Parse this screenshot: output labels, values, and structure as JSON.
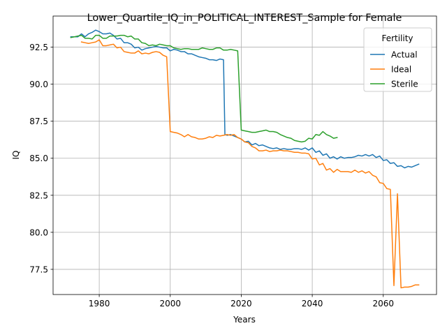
{
  "chart_data": {
    "type": "line",
    "title": "Lower_Quartile_IQ_in_POLITICAL_INTEREST_Sample for Female",
    "xlabel": "Years",
    "ylabel": "IQ",
    "xlim": [
      1967,
      2075
    ],
    "ylim": [
      75.8,
      94.6
    ],
    "xticks": [
      1980,
      2000,
      2020,
      2040,
      2060
    ],
    "yticks": [
      77.5,
      80.0,
      82.5,
      85.0,
      87.5,
      90.0,
      92.5
    ],
    "grid": true,
    "legend": {
      "title": "Fertility",
      "placement": "top-right"
    },
    "series": [
      {
        "name": "Actual",
        "color": "#1f77b4",
        "points": [
          [
            1972,
            93.2
          ],
          [
            1973,
            93.2
          ],
          [
            1974,
            93.2
          ],
          [
            1975,
            93.4
          ],
          [
            1976,
            93.2
          ],
          [
            1977,
            93.4
          ],
          [
            1978,
            93.5
          ],
          [
            1979,
            93.65
          ],
          [
            1980,
            93.55
          ],
          [
            1981,
            93.4
          ],
          [
            1982,
            93.4
          ],
          [
            1983,
            93.45
          ],
          [
            1984,
            93.3
          ],
          [
            1985,
            93.05
          ],
          [
            1986,
            93.1
          ],
          [
            1987,
            92.8
          ],
          [
            1988,
            92.8
          ],
          [
            1989,
            92.7
          ],
          [
            1990,
            92.45
          ],
          [
            1991,
            92.5
          ],
          [
            1992,
            92.3
          ],
          [
            1993,
            92.4
          ],
          [
            1994,
            92.45
          ],
          [
            1995,
            92.5
          ],
          [
            1996,
            92.55
          ],
          [
            1997,
            92.5
          ],
          [
            1998,
            92.45
          ],
          [
            1999,
            92.45
          ],
          [
            2000,
            92.25
          ],
          [
            2001,
            92.35
          ],
          [
            2002,
            92.3
          ],
          [
            2003,
            92.2
          ],
          [
            2004,
            92.2
          ],
          [
            2005,
            92.05
          ],
          [
            2006,
            92.05
          ],
          [
            2007,
            91.95
          ],
          [
            2008,
            91.85
          ],
          [
            2009,
            91.8
          ],
          [
            2010,
            91.75
          ],
          [
            2011,
            91.65
          ],
          [
            2012,
            91.65
          ],
          [
            2013,
            91.6
          ],
          [
            2014,
            91.7
          ],
          [
            2015,
            91.65
          ],
          [
            2015.4,
            86.6
          ],
          [
            2016,
            86.55
          ],
          [
            2017,
            86.6
          ],
          [
            2018,
            86.5
          ],
          [
            2019,
            86.4
          ],
          [
            2020,
            86.3
          ],
          [
            2021,
            86.1
          ],
          [
            2022,
            86.15
          ],
          [
            2023,
            85.9
          ],
          [
            2024,
            86.0
          ],
          [
            2025,
            85.85
          ],
          [
            2026,
            85.9
          ],
          [
            2027,
            85.8
          ],
          [
            2028,
            85.7
          ],
          [
            2029,
            85.65
          ],
          [
            2030,
            85.7
          ],
          [
            2031,
            85.6
          ],
          [
            2032,
            85.65
          ],
          [
            2033,
            85.6
          ],
          [
            2034,
            85.6
          ],
          [
            2035,
            85.65
          ],
          [
            2036,
            85.65
          ],
          [
            2037,
            85.6
          ],
          [
            2038,
            85.7
          ],
          [
            2039,
            85.55
          ],
          [
            2040,
            85.7
          ],
          [
            2041,
            85.4
          ],
          [
            2042,
            85.5
          ],
          [
            2043,
            85.2
          ],
          [
            2044,
            85.3
          ],
          [
            2045,
            85.0
          ],
          [
            2046,
            85.1
          ],
          [
            2047,
            84.95
          ],
          [
            2048,
            85.1
          ],
          [
            2049,
            85.0
          ],
          [
            2050,
            85.05
          ],
          [
            2051,
            85.05
          ],
          [
            2052,
            85.1
          ],
          [
            2053,
            85.2
          ],
          [
            2054,
            85.15
          ],
          [
            2055,
            85.25
          ],
          [
            2056,
            85.15
          ],
          [
            2057,
            85.25
          ],
          [
            2058,
            85.05
          ],
          [
            2059,
            85.15
          ],
          [
            2060,
            84.85
          ],
          [
            2061,
            84.9
          ],
          [
            2062,
            84.65
          ],
          [
            2063,
            84.7
          ],
          [
            2064,
            84.45
          ],
          [
            2065,
            84.5
          ],
          [
            2066,
            84.35
          ],
          [
            2067,
            84.45
          ],
          [
            2068,
            84.4
          ],
          [
            2069,
            84.5
          ],
          [
            2070,
            84.6
          ]
        ]
      },
      {
        "name": "Ideal",
        "color": "#ff7f0e",
        "points": [
          [
            1975,
            92.85
          ],
          [
            1976,
            92.8
          ],
          [
            1977,
            92.75
          ],
          [
            1978,
            92.8
          ],
          [
            1979,
            92.85
          ],
          [
            1980,
            93.0
          ],
          [
            1981,
            92.6
          ],
          [
            1982,
            92.6
          ],
          [
            1983,
            92.65
          ],
          [
            1984,
            92.7
          ],
          [
            1985,
            92.45
          ],
          [
            1986,
            92.5
          ],
          [
            1987,
            92.2
          ],
          [
            1988,
            92.15
          ],
          [
            1989,
            92.1
          ],
          [
            1990,
            92.1
          ],
          [
            1991,
            92.25
          ],
          [
            1992,
            92.05
          ],
          [
            1993,
            92.1
          ],
          [
            1994,
            92.05
          ],
          [
            1995,
            92.15
          ],
          [
            1996,
            92.2
          ],
          [
            1997,
            92.15
          ],
          [
            1998,
            91.95
          ],
          [
            1999,
            91.85
          ],
          [
            2000,
            86.8
          ],
          [
            2001,
            86.75
          ],
          [
            2002,
            86.7
          ],
          [
            2003,
            86.6
          ],
          [
            2004,
            86.45
          ],
          [
            2005,
            86.6
          ],
          [
            2006,
            86.45
          ],
          [
            2007,
            86.4
          ],
          [
            2008,
            86.3
          ],
          [
            2009,
            86.3
          ],
          [
            2010,
            86.35
          ],
          [
            2011,
            86.45
          ],
          [
            2012,
            86.4
          ],
          [
            2013,
            86.55
          ],
          [
            2014,
            86.5
          ],
          [
            2015,
            86.55
          ],
          [
            2016,
            86.6
          ],
          [
            2017,
            86.55
          ],
          [
            2018,
            86.6
          ],
          [
            2019,
            86.4
          ],
          [
            2020,
            86.3
          ],
          [
            2021,
            86.1
          ],
          [
            2022,
            86.05
          ],
          [
            2023,
            85.8
          ],
          [
            2024,
            85.7
          ],
          [
            2025,
            85.5
          ],
          [
            2026,
            85.5
          ],
          [
            2027,
            85.55
          ],
          [
            2028,
            85.45
          ],
          [
            2029,
            85.5
          ],
          [
            2030,
            85.5
          ],
          [
            2031,
            85.55
          ],
          [
            2032,
            85.5
          ],
          [
            2033,
            85.5
          ],
          [
            2034,
            85.45
          ],
          [
            2035,
            85.4
          ],
          [
            2036,
            85.4
          ],
          [
            2037,
            85.35
          ],
          [
            2038,
            85.35
          ],
          [
            2039,
            85.3
          ],
          [
            2040,
            84.95
          ],
          [
            2041,
            85.0
          ],
          [
            2042,
            84.55
          ],
          [
            2043,
            84.65
          ],
          [
            2044,
            84.2
          ],
          [
            2045,
            84.3
          ],
          [
            2046,
            84.05
          ],
          [
            2047,
            84.25
          ],
          [
            2048,
            84.1
          ],
          [
            2049,
            84.1
          ],
          [
            2050,
            84.1
          ],
          [
            2051,
            84.05
          ],
          [
            2052,
            84.2
          ],
          [
            2053,
            84.05
          ],
          [
            2054,
            84.15
          ],
          [
            2055,
            84.0
          ],
          [
            2056,
            84.1
          ],
          [
            2057,
            83.85
          ],
          [
            2058,
            83.75
          ],
          [
            2059,
            83.35
          ],
          [
            2060,
            83.3
          ],
          [
            2061,
            82.95
          ],
          [
            2062,
            82.9
          ],
          [
            2063,
            76.4
          ],
          [
            2064,
            82.6
          ],
          [
            2065,
            76.25
          ],
          [
            2066,
            76.3
          ],
          [
            2067,
            76.3
          ],
          [
            2068,
            76.35
          ],
          [
            2069,
            76.45
          ],
          [
            2070,
            76.45
          ]
        ]
      },
      {
        "name": "Sterile",
        "color": "#2ca02c",
        "points": [
          [
            1972,
            93.15
          ],
          [
            1973,
            93.2
          ],
          [
            1974,
            93.25
          ],
          [
            1975,
            93.3
          ],
          [
            1976,
            93.1
          ],
          [
            1977,
            93.1
          ],
          [
            1978,
            93.05
          ],
          [
            1979,
            93.3
          ],
          [
            1980,
            93.3
          ],
          [
            1981,
            93.1
          ],
          [
            1982,
            93.1
          ],
          [
            1983,
            93.25
          ],
          [
            1984,
            93.25
          ],
          [
            1985,
            93.25
          ],
          [
            1986,
            93.3
          ],
          [
            1987,
            93.3
          ],
          [
            1988,
            93.2
          ],
          [
            1989,
            93.25
          ],
          [
            1990,
            93.05
          ],
          [
            1991,
            93.05
          ],
          [
            1992,
            92.8
          ],
          [
            1993,
            92.75
          ],
          [
            1994,
            92.6
          ],
          [
            1995,
            92.65
          ],
          [
            1996,
            92.6
          ],
          [
            1997,
            92.7
          ],
          [
            1998,
            92.65
          ],
          [
            1999,
            92.6
          ],
          [
            2000,
            92.6
          ],
          [
            2001,
            92.45
          ],
          [
            2002,
            92.4
          ],
          [
            2003,
            92.35
          ],
          [
            2004,
            92.4
          ],
          [
            2005,
            92.4
          ],
          [
            2006,
            92.35
          ],
          [
            2007,
            92.35
          ],
          [
            2008,
            92.35
          ],
          [
            2009,
            92.45
          ],
          [
            2010,
            92.4
          ],
          [
            2011,
            92.35
          ],
          [
            2012,
            92.35
          ],
          [
            2013,
            92.45
          ],
          [
            2014,
            92.45
          ],
          [
            2015,
            92.3
          ],
          [
            2016,
            92.3
          ],
          [
            2017,
            92.35
          ],
          [
            2018,
            92.3
          ],
          [
            2019,
            92.25
          ],
          [
            2020,
            86.9
          ],
          [
            2021,
            86.85
          ],
          [
            2022,
            86.8
          ],
          [
            2023,
            86.75
          ],
          [
            2024,
            86.75
          ],
          [
            2025,
            86.8
          ],
          [
            2026,
            86.85
          ],
          [
            2027,
            86.9
          ],
          [
            2028,
            86.8
          ],
          [
            2029,
            86.8
          ],
          [
            2030,
            86.75
          ],
          [
            2031,
            86.6
          ],
          [
            2032,
            86.5
          ],
          [
            2033,
            86.4
          ],
          [
            2034,
            86.35
          ],
          [
            2035,
            86.2
          ],
          [
            2036,
            86.15
          ],
          [
            2037,
            86.1
          ],
          [
            2038,
            86.15
          ],
          [
            2039,
            86.35
          ],
          [
            2040,
            86.3
          ],
          [
            2041,
            86.6
          ],
          [
            2042,
            86.55
          ],
          [
            2043,
            86.8
          ],
          [
            2044,
            86.6
          ],
          [
            2045,
            86.5
          ],
          [
            2046,
            86.35
          ],
          [
            2047,
            86.4
          ]
        ]
      }
    ]
  }
}
